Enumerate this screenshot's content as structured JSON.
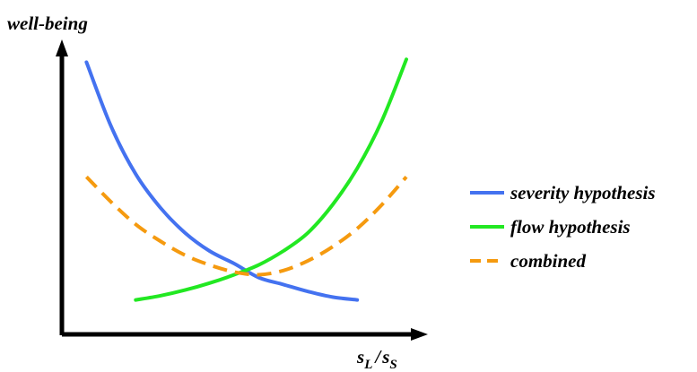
{
  "chart_data": {
    "type": "line",
    "title": "",
    "ylabel": "well-being",
    "xlabel_main": "s",
    "xlabel_sub_L": "L",
    "xlabel_slash": "/",
    "xlabel_sub_S": "S",
    "xlim": [
      0,
      10
    ],
    "ylim": [
      0,
      10
    ],
    "grid": false,
    "ticks": false,
    "legend_position": "right",
    "series": [
      {
        "name": "severity hypothesis",
        "color": "#4472f0",
        "dash": "solid",
        "x": [
          0.75,
          1.5,
          2.25,
          3.0,
          3.75,
          4.5,
          5.25,
          6.0,
          6.75,
          7.5,
          8.25,
          9.0
        ],
        "y": [
          9.7,
          7.4,
          5.7,
          4.5,
          3.6,
          2.95,
          2.5,
          2.0,
          1.75,
          1.5,
          1.3,
          1.2
        ]
      },
      {
        "name": "flow hypothesis",
        "color": "#22e822",
        "dash": "solid",
        "x": [
          2.25,
          3.0,
          3.75,
          4.5,
          5.25,
          6.0,
          6.75,
          7.5,
          8.25,
          9.0,
          9.75,
          10.5
        ],
        "y": [
          1.2,
          1.35,
          1.55,
          1.8,
          2.1,
          2.45,
          2.95,
          3.6,
          4.6,
          5.9,
          7.6,
          9.8
        ]
      },
      {
        "name": "combined",
        "color": "#f59a0f",
        "dash": "dashed",
        "x": [
          0.75,
          1.5,
          2.25,
          3.0,
          3.75,
          4.5,
          5.25,
          6.0,
          6.75,
          7.5,
          8.25,
          9.0,
          9.75,
          10.5
        ],
        "y": [
          5.6,
          4.7,
          3.9,
          3.3,
          2.8,
          2.45,
          2.2,
          2.1,
          2.25,
          2.6,
          3.1,
          3.75,
          4.6,
          5.6
        ]
      }
    ]
  }
}
